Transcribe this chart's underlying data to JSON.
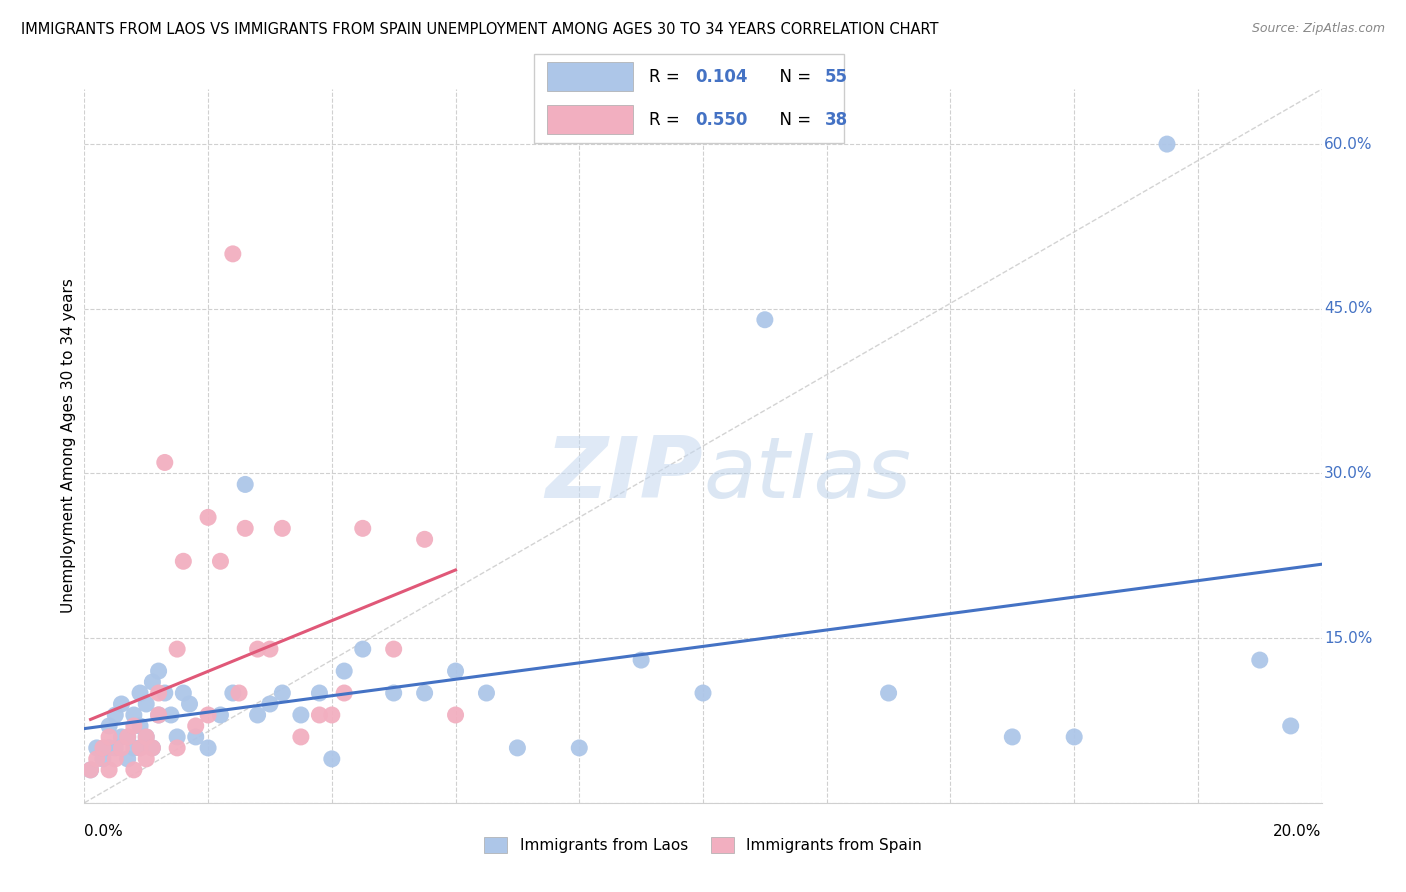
{
  "title": "IMMIGRANTS FROM LAOS VS IMMIGRANTS FROM SPAIN UNEMPLOYMENT AMONG AGES 30 TO 34 YEARS CORRELATION CHART",
  "source": "Source: ZipAtlas.com",
  "ylabel": "Unemployment Among Ages 30 to 34 years",
  "xlim": [
    0.0,
    0.2
  ],
  "ylim": [
    0.0,
    0.65
  ],
  "yticks": [
    0.0,
    0.15,
    0.3,
    0.45,
    0.6
  ],
  "ytick_labels": [
    "",
    "15.0%",
    "30.0%",
    "45.0%",
    "60.0%"
  ],
  "laos_R": "0.104",
  "laos_N": "55",
  "spain_R": "0.550",
  "spain_N": "38",
  "laos_color": "#adc6e8",
  "spain_color": "#f2afc0",
  "laos_line_color": "#4472c4",
  "spain_line_color": "#e05878",
  "diagonal_color": "#c8c8c8",
  "background_color": "#ffffff",
  "grid_color": "#d0d0d0",
  "watermark_zip_color": "#c5d8f0",
  "watermark_atlas_color": "#c5d8e8",
  "laos_x": [
    0.001,
    0.002,
    0.003,
    0.004,
    0.004,
    0.005,
    0.005,
    0.006,
    0.006,
    0.007,
    0.007,
    0.008,
    0.008,
    0.009,
    0.009,
    0.009,
    0.01,
    0.01,
    0.011,
    0.011,
    0.012,
    0.012,
    0.013,
    0.014,
    0.015,
    0.016,
    0.017,
    0.018,
    0.02,
    0.022,
    0.024,
    0.026,
    0.028,
    0.03,
    0.032,
    0.035,
    0.038,
    0.04,
    0.042,
    0.045,
    0.05,
    0.055,
    0.06,
    0.065,
    0.07,
    0.08,
    0.09,
    0.1,
    0.11,
    0.13,
    0.15,
    0.16,
    0.175,
    0.19,
    0.195
  ],
  "laos_y": [
    0.03,
    0.05,
    0.04,
    0.05,
    0.07,
    0.05,
    0.08,
    0.06,
    0.09,
    0.04,
    0.06,
    0.05,
    0.08,
    0.05,
    0.07,
    0.1,
    0.06,
    0.09,
    0.05,
    0.11,
    0.08,
    0.12,
    0.1,
    0.08,
    0.06,
    0.1,
    0.09,
    0.06,
    0.05,
    0.08,
    0.1,
    0.29,
    0.08,
    0.09,
    0.1,
    0.08,
    0.1,
    0.04,
    0.12,
    0.14,
    0.1,
    0.1,
    0.12,
    0.1,
    0.05,
    0.05,
    0.13,
    0.1,
    0.44,
    0.1,
    0.06,
    0.06,
    0.6,
    0.13,
    0.07
  ],
  "spain_x": [
    0.001,
    0.002,
    0.003,
    0.004,
    0.004,
    0.005,
    0.006,
    0.007,
    0.008,
    0.008,
    0.009,
    0.01,
    0.01,
    0.011,
    0.012,
    0.012,
    0.013,
    0.015,
    0.015,
    0.016,
    0.018,
    0.02,
    0.02,
    0.022,
    0.024,
    0.025,
    0.026,
    0.028,
    0.03,
    0.032,
    0.035,
    0.038,
    0.04,
    0.042,
    0.045,
    0.05,
    0.055,
    0.06
  ],
  "spain_y": [
    0.03,
    0.04,
    0.05,
    0.03,
    0.06,
    0.04,
    0.05,
    0.06,
    0.03,
    0.07,
    0.05,
    0.04,
    0.06,
    0.05,
    0.08,
    0.1,
    0.31,
    0.05,
    0.14,
    0.22,
    0.07,
    0.08,
    0.26,
    0.22,
    0.5,
    0.1,
    0.25,
    0.14,
    0.14,
    0.25,
    0.06,
    0.08,
    0.08,
    0.1,
    0.25,
    0.14,
    0.24,
    0.08
  ]
}
